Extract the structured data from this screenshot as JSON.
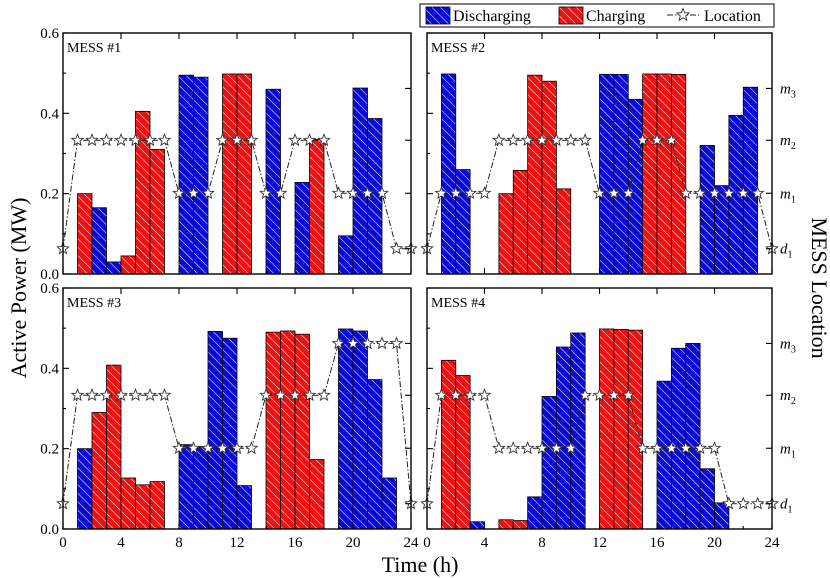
{
  "colors": {
    "discharging": "#0a0ad8",
    "charging": "#ee1111",
    "hatch": "#ffffff",
    "star_fill": "#ffffff",
    "star_stroke": "#333333"
  },
  "chart_data": {
    "type": "bar",
    "xlabel": "Time (h)",
    "ylabel_left": "Active Power (MW)",
    "ylabel_right": "MESS Location",
    "xlim": [
      0,
      24
    ],
    "ylim": [
      0,
      0.6
    ],
    "x_ticks": [
      "0",
      "4",
      "8",
      "12",
      "16",
      "20",
      "24"
    ],
    "y_ticks": [
      "0.0",
      "0.2",
      "0.4",
      "0.6"
    ],
    "locations": [
      "d1",
      "m1",
      "m2",
      "m3"
    ],
    "legend": [
      "Discharging",
      "Charging",
      "Location"
    ],
    "panels": [
      {
        "label": "MESS #1",
        "loc_ticks": [
          {
            "base": "m",
            "sub": "3",
            "level": 3
          },
          {
            "base": "m",
            "sub": "2",
            "level": 2
          },
          {
            "base": "m",
            "sub": "1",
            "level": 1
          },
          {
            "base": "d",
            "sub": "1",
            "level": 0
          }
        ],
        "bars": [
          {
            "t": 1,
            "v": 0.2,
            "type": "c"
          },
          {
            "t": 2,
            "v": 0.165,
            "type": "d"
          },
          {
            "t": 3,
            "v": 0.03,
            "type": "d"
          },
          {
            "t": 4,
            "v": 0.045,
            "type": "c"
          },
          {
            "t": 5,
            "v": 0.405,
            "type": "c"
          },
          {
            "t": 6,
            "v": 0.31,
            "type": "c"
          },
          {
            "t": 8,
            "v": 0.495,
            "type": "d"
          },
          {
            "t": 9,
            "v": 0.49,
            "type": "d"
          },
          {
            "t": 11,
            "v": 0.498,
            "type": "c"
          },
          {
            "t": 12,
            "v": 0.498,
            "type": "c"
          },
          {
            "t": 14,
            "v": 0.46,
            "type": "d"
          },
          {
            "t": 16,
            "v": 0.228,
            "type": "d"
          },
          {
            "t": 17,
            "v": 0.335,
            "type": "c"
          },
          {
            "t": 19,
            "v": 0.095,
            "type": "d"
          },
          {
            "t": 20,
            "v": 0.463,
            "type": "d"
          },
          {
            "t": 21,
            "v": 0.387,
            "type": "d"
          }
        ],
        "location": [
          0,
          2,
          2,
          2,
          2,
          2,
          2,
          2,
          1,
          1,
          1,
          2,
          2,
          2,
          1,
          1,
          2,
          2,
          2,
          1,
          1,
          1,
          1,
          0,
          0
        ]
      },
      {
        "label": "MESS #2",
        "loc_ticks": [
          {
            "base": "m",
            "sub": "3",
            "level": 3
          },
          {
            "base": "m",
            "sub": "2",
            "level": 2
          },
          {
            "base": "m",
            "sub": "1",
            "level": 1
          },
          {
            "base": "d",
            "sub": "1",
            "level": 0
          }
        ],
        "bars": [
          {
            "t": 1,
            "v": 0.498,
            "type": "d"
          },
          {
            "t": 2,
            "v": 0.26,
            "type": "d"
          },
          {
            "t": 5,
            "v": 0.2,
            "type": "c"
          },
          {
            "t": 6,
            "v": 0.258,
            "type": "c"
          },
          {
            "t": 7,
            "v": 0.495,
            "type": "c"
          },
          {
            "t": 8,
            "v": 0.48,
            "type": "c"
          },
          {
            "t": 9,
            "v": 0.212,
            "type": "c"
          },
          {
            "t": 12,
            "v": 0.497,
            "type": "d"
          },
          {
            "t": 13,
            "v": 0.497,
            "type": "d"
          },
          {
            "t": 14,
            "v": 0.435,
            "type": "d"
          },
          {
            "t": 15,
            "v": 0.498,
            "type": "c"
          },
          {
            "t": 16,
            "v": 0.498,
            "type": "c"
          },
          {
            "t": 17,
            "v": 0.497,
            "type": "c"
          },
          {
            "t": 19,
            "v": 0.32,
            "type": "d"
          },
          {
            "t": 20,
            "v": 0.22,
            "type": "d"
          },
          {
            "t": 21,
            "v": 0.395,
            "type": "d"
          },
          {
            "t": 22,
            "v": 0.465,
            "type": "d"
          }
        ],
        "location": [
          0,
          1,
          1,
          1,
          1,
          2,
          2,
          2,
          2,
          2,
          2,
          2,
          1,
          1,
          1,
          2,
          2,
          2,
          1,
          1,
          1,
          1,
          1,
          1,
          0
        ]
      },
      {
        "label": "MESS #3",
        "loc_ticks": [
          {
            "base": "m",
            "sub": "3",
            "level": 3
          },
          {
            "base": "m",
            "sub": "2",
            "level": 2
          },
          {
            "base": "m",
            "sub": "1",
            "level": 1
          },
          {
            "base": "d",
            "sub": "1",
            "level": 0
          }
        ],
        "bars": [
          {
            "t": 1,
            "v": 0.2,
            "type": "d"
          },
          {
            "t": 2,
            "v": 0.29,
            "type": "c"
          },
          {
            "t": 3,
            "v": 0.408,
            "type": "c"
          },
          {
            "t": 4,
            "v": 0.127,
            "type": "c"
          },
          {
            "t": 5,
            "v": 0.11,
            "type": "c"
          },
          {
            "t": 6,
            "v": 0.118,
            "type": "c"
          },
          {
            "t": 8,
            "v": 0.21,
            "type": "d"
          },
          {
            "t": 9,
            "v": 0.205,
            "type": "d"
          },
          {
            "t": 10,
            "v": 0.492,
            "type": "d"
          },
          {
            "t": 11,
            "v": 0.475,
            "type": "d"
          },
          {
            "t": 12,
            "v": 0.108,
            "type": "d"
          },
          {
            "t": 14,
            "v": 0.49,
            "type": "c"
          },
          {
            "t": 15,
            "v": 0.493,
            "type": "c"
          },
          {
            "t": 16,
            "v": 0.485,
            "type": "c"
          },
          {
            "t": 17,
            "v": 0.173,
            "type": "c"
          },
          {
            "t": 19,
            "v": 0.498,
            "type": "d"
          },
          {
            "t": 20,
            "v": 0.493,
            "type": "d"
          },
          {
            "t": 21,
            "v": 0.372,
            "type": "d"
          },
          {
            "t": 22,
            "v": 0.127,
            "type": "d"
          }
        ],
        "location": [
          0,
          2,
          2,
          2,
          2,
          2,
          2,
          2,
          1,
          1,
          1,
          1,
          1,
          1,
          2,
          2,
          2,
          2,
          2,
          3,
          3,
          3,
          3,
          3,
          0
        ]
      },
      {
        "label": "MESS #4",
        "loc_ticks": [
          {
            "base": "m",
            "sub": "3",
            "level": 3
          },
          {
            "base": "m",
            "sub": "2",
            "level": 2
          },
          {
            "base": "m",
            "sub": "1",
            "level": 1
          },
          {
            "base": "d",
            "sub": "1",
            "level": 0
          }
        ],
        "bars": [
          {
            "t": 1,
            "v": 0.42,
            "type": "c"
          },
          {
            "t": 2,
            "v": 0.382,
            "type": "c"
          },
          {
            "t": 3,
            "v": 0.018,
            "type": "d"
          },
          {
            "t": 5,
            "v": 0.023,
            "type": "c"
          },
          {
            "t": 6,
            "v": 0.021,
            "type": "c"
          },
          {
            "t": 7,
            "v": 0.08,
            "type": "d"
          },
          {
            "t": 8,
            "v": 0.33,
            "type": "d"
          },
          {
            "t": 9,
            "v": 0.453,
            "type": "d"
          },
          {
            "t": 10,
            "v": 0.488,
            "type": "d"
          },
          {
            "t": 12,
            "v": 0.498,
            "type": "c"
          },
          {
            "t": 13,
            "v": 0.497,
            "type": "c"
          },
          {
            "t": 14,
            "v": 0.495,
            "type": "c"
          },
          {
            "t": 16,
            "v": 0.368,
            "type": "d"
          },
          {
            "t": 17,
            "v": 0.45,
            "type": "d"
          },
          {
            "t": 18,
            "v": 0.462,
            "type": "d"
          },
          {
            "t": 19,
            "v": 0.15,
            "type": "d"
          },
          {
            "t": 20,
            "v": 0.065,
            "type": "d"
          }
        ],
        "location": [
          0,
          2,
          2,
          2,
          2,
          1,
          1,
          1,
          1,
          1,
          1,
          2,
          2,
          2,
          2,
          1,
          1,
          1,
          1,
          1,
          1,
          0,
          0,
          0,
          0
        ]
      }
    ]
  }
}
